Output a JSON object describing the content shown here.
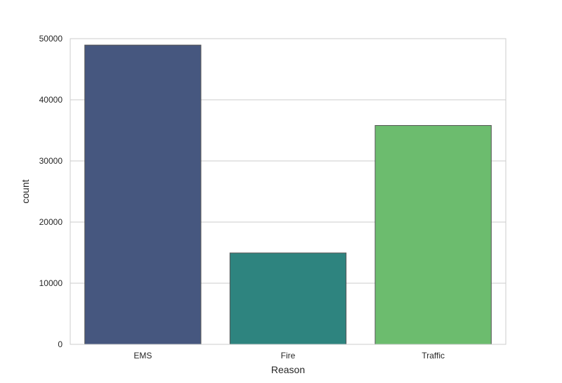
{
  "chart_data": {
    "type": "bar",
    "title": "",
    "xlabel": "Reason",
    "ylabel": "count",
    "categories": [
      "EMS",
      "Fire",
      "Traffic"
    ],
    "values": [
      48950,
      14950,
      35800
    ],
    "ylim": [
      0,
      50000
    ],
    "yticks": [
      0,
      10000,
      20000,
      30000,
      40000,
      50000
    ],
    "grid": true,
    "bar_colors": [
      "#46577f",
      "#2e847f",
      "#6cbc6e"
    ],
    "bar_edge_color": "#555555",
    "grid_color": "#cccccc",
    "frame_color": "#cccccc"
  }
}
